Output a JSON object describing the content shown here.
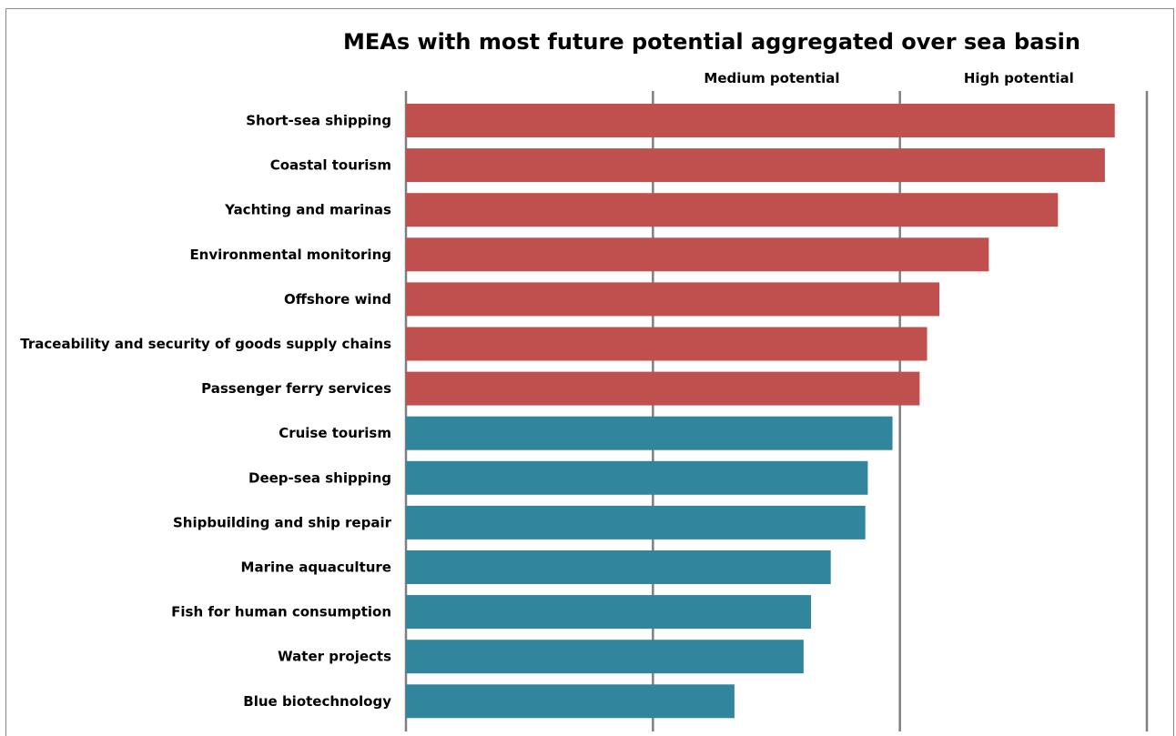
{
  "chart_data": {
    "type": "bar",
    "orientation": "horizontal",
    "title": "MEAs with most future potential aggregated over sea basin",
    "xlabel": "",
    "ylabel": "",
    "xlim": [
      0,
      3
    ],
    "grid": true,
    "band_labels": [
      {
        "text": "Medium potential",
        "x": 1.5
      },
      {
        "text": "High potential",
        "x": 2.5
      }
    ],
    "categories": [
      "Short-sea shipping",
      "Coastal tourism",
      "Yachting and marinas",
      "Environmental monitoring",
      "Offshore wind",
      "Traceability and security of goods supply chains",
      "Passenger ferry services",
      "Cruise tourism",
      "Deep-sea shipping",
      "Shipbuilding and ship repair",
      "Marine aquaculture",
      "Fish for human consumption",
      "Water projects",
      "Blue biotechnology"
    ],
    "values": [
      2.87,
      2.83,
      2.64,
      2.36,
      2.16,
      2.11,
      2.08,
      1.97,
      1.87,
      1.86,
      1.72,
      1.64,
      1.61,
      1.33
    ],
    "groups": [
      "high",
      "high",
      "high",
      "high",
      "high",
      "high",
      "high",
      "medium",
      "medium",
      "medium",
      "medium",
      "medium",
      "medium",
      "medium"
    ],
    "colors": {
      "high": "#c0504d",
      "medium": "#31859c",
      "grid": "#7f7f7f"
    }
  }
}
